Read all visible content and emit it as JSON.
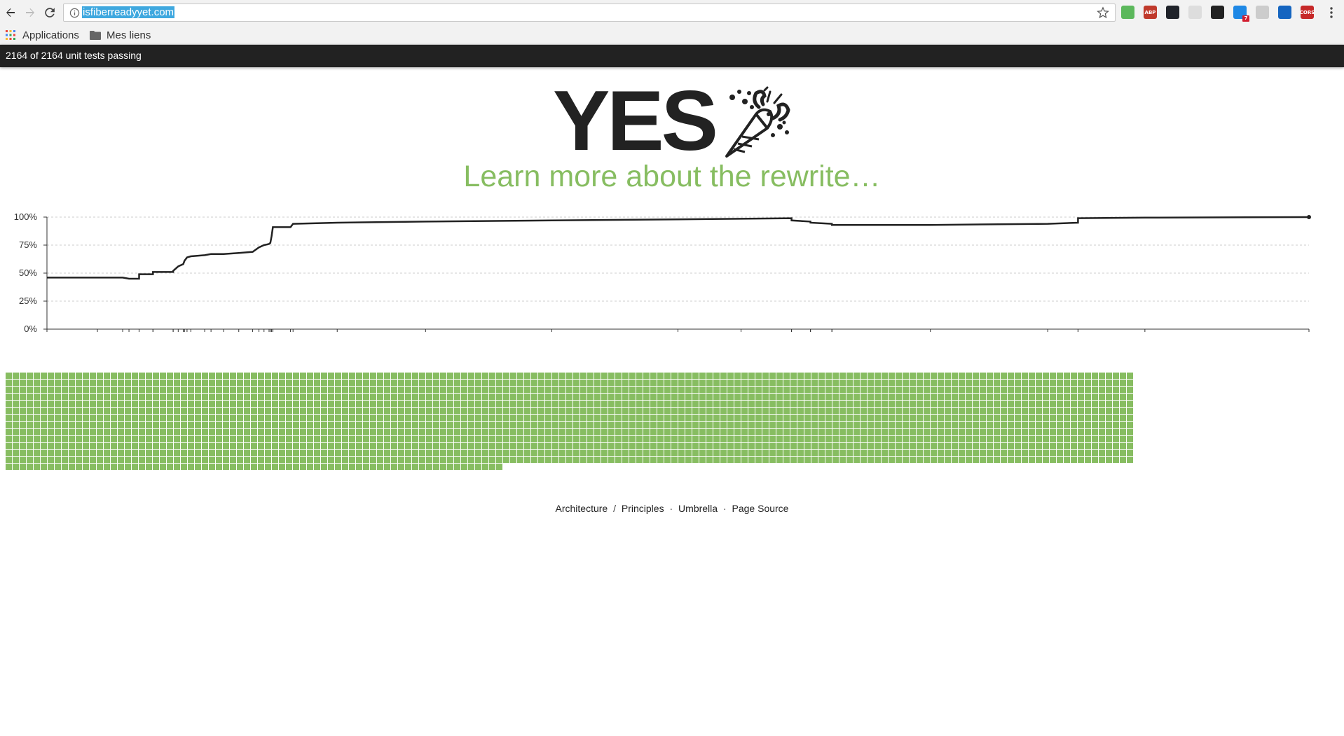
{
  "browser": {
    "url": "isfiberreadyyet.com",
    "bookmarks": [
      {
        "label": "Applications",
        "icon": "apps-grid-icon"
      },
      {
        "label": "Mes liens",
        "icon": "folder-icon"
      }
    ],
    "extensions": [
      {
        "name": "extension-1-icon",
        "color": "#5cb85c",
        "text": "",
        "badge": ""
      },
      {
        "name": "adblock-plus-icon",
        "color": "#c0392b",
        "text": "ABP",
        "badge": ""
      },
      {
        "name": "react-devtools-icon",
        "color": "#20232a",
        "text": "",
        "badge": ""
      },
      {
        "name": "extension-4-icon",
        "color": "#dddddd",
        "text": "",
        "badge": ""
      },
      {
        "name": "extension-5-icon",
        "color": "#222222",
        "text": "",
        "badge": ""
      },
      {
        "name": "extension-6-icon",
        "color": "#1e88e5",
        "text": "",
        "badge": "7"
      },
      {
        "name": "extension-7-icon",
        "color": "#cccccc",
        "text": "",
        "badge": ""
      },
      {
        "name": "extension-8-icon",
        "color": "#1565c0",
        "text": "",
        "badge": ""
      },
      {
        "name": "cors-icon",
        "color": "#c62828",
        "text": "CORS",
        "badge": ""
      }
    ]
  },
  "status": {
    "text": "2164 of 2164 unit tests passing"
  },
  "headline": {
    "answer": "YES",
    "icon": "party-popper-icon"
  },
  "learn_more": "Learn more about the rewrite…",
  "colors": {
    "accent": "#87bd61",
    "dark": "#222222"
  },
  "chart_data": {
    "type": "line",
    "title": "",
    "xlabel": "",
    "ylabel": "",
    "ylim": [
      0,
      100
    ],
    "yticks": [
      "0%",
      "25%",
      "50%",
      "75%",
      "100%"
    ],
    "grid": true,
    "series": [
      {
        "values": [
          [
            0,
            46
          ],
          [
            4,
            46
          ],
          [
            6,
            46
          ],
          [
            6.5,
            45
          ],
          [
            7.3,
            45
          ],
          [
            7.3,
            49
          ],
          [
            8.4,
            49
          ],
          [
            8.4,
            51
          ],
          [
            10,
            51
          ],
          [
            10,
            52
          ],
          [
            10.4,
            56
          ],
          [
            10.8,
            58
          ],
          [
            10.9,
            61
          ],
          [
            11.1,
            64
          ],
          [
            11.4,
            65
          ],
          [
            12.5,
            66
          ],
          [
            13,
            67
          ],
          [
            14,
            67
          ],
          [
            15.2,
            68
          ],
          [
            16.3,
            69
          ],
          [
            16.8,
            73
          ],
          [
            17.2,
            75
          ],
          [
            17.6,
            76
          ],
          [
            17.7,
            77
          ],
          [
            17.8,
            83
          ],
          [
            17.9,
            91
          ],
          [
            19.3,
            91
          ],
          [
            19.5,
            94
          ],
          [
            23,
            95
          ],
          [
            30,
            96
          ],
          [
            40,
            97
          ],
          [
            50,
            98
          ],
          [
            55,
            98.5
          ],
          [
            59,
            99
          ],
          [
            59,
            97
          ],
          [
            60.5,
            96
          ],
          [
            60.5,
            95
          ],
          [
            62.2,
            94
          ],
          [
            62.2,
            93
          ],
          [
            70,
            93
          ],
          [
            79.3,
            94
          ],
          [
            81.7,
            95
          ],
          [
            81.7,
            99
          ],
          [
            87,
            99.5
          ],
          [
            100,
            100
          ]
        ]
      }
    ]
  },
  "tests": {
    "passing": 2164,
    "total": 2164
  },
  "footer": {
    "architecture": "Architecture",
    "slash": "/",
    "principles": "Principles",
    "dot1": "·",
    "umbrella": "Umbrella",
    "dot2": "·",
    "source": "Page Source"
  }
}
